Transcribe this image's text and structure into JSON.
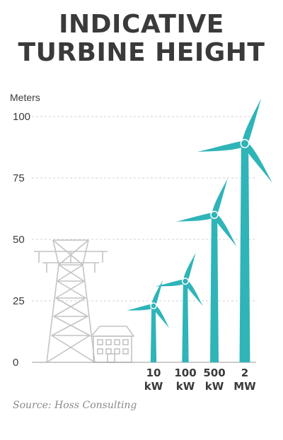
{
  "title_line1": "INDICATIVE",
  "title_line2": "TURBINE HEIGHT",
  "source": "Source: Hoss Consulting",
  "colors": {
    "turbine": "#2fb4b8",
    "structure": "#c4c4c4",
    "text": "#3a3a3a",
    "grid": "#d2d2d2"
  },
  "chart_data": {
    "type": "bar",
    "ylabel": "Meters",
    "ylim": [
      0,
      100
    ],
    "yticks": [
      0,
      25,
      50,
      75,
      100
    ],
    "grid": true,
    "categories": [
      {
        "line1": "10",
        "line2": "kW"
      },
      {
        "line1": "100",
        "line2": "kW"
      },
      {
        "line1": "500",
        "line2": "kW"
      },
      {
        "line1": "2",
        "line2": "MW"
      }
    ],
    "values": [
      23,
      33,
      60,
      89
    ]
  }
}
